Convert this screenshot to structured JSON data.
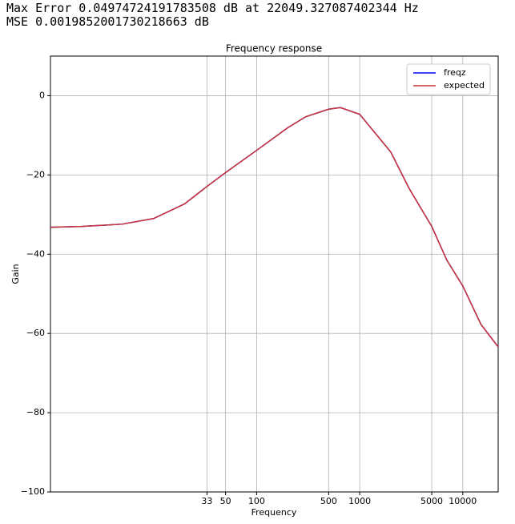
{
  "header": {
    "lines": [
      "Max Error 0.04974724191783508 dB at 22049.327087402344 Hz",
      "MSE 0.0019852001730218663 dB"
    ]
  },
  "chart_data": {
    "type": "line",
    "title": "Frequency response",
    "x_label": "Frequency",
    "y_label": "Gain",
    "x_scale": "log",
    "grid": true,
    "legend": "upper right",
    "x": [
      1,
      2,
      5,
      10,
      20,
      33,
      50,
      100,
      200,
      300,
      500,
      650,
      1000,
      2000,
      3000,
      5000,
      7000,
      10000,
      15000,
      22050
    ],
    "series": [
      {
        "name": "freqz",
        "color": "#0000ff",
        "values": [
          -33.2,
          -33.0,
          -32.4,
          -31.0,
          -27.3,
          -22.9,
          -19.4,
          -13.8,
          -8.1,
          -5.3,
          -3.4,
          -3.0,
          -4.7,
          -14.2,
          -23.3,
          -33.0,
          -41.5,
          -48.0,
          -57.7,
          -63.4
        ]
      },
      {
        "name": "expected",
        "color": "#cc3333",
        "values": [
          -33.2,
          -33.0,
          -32.4,
          -31.0,
          -27.3,
          -22.9,
          -19.4,
          -13.8,
          -8.1,
          -5.3,
          -3.4,
          -3.0,
          -4.7,
          -14.2,
          -23.3,
          -33.0,
          -41.5,
          -48.0,
          -57.7,
          -63.4
        ]
      }
    ],
    "xlim": [
      1,
      22050
    ],
    "xticks": [
      33,
      50,
      100,
      500,
      1000,
      5000,
      10000
    ],
    "ylim": [
      -100,
      10
    ],
    "yticks": [
      {
        "value": -100,
        "label": "−100"
      },
      {
        "value": -80,
        "label": "−80"
      },
      {
        "value": -60,
        "label": "−60"
      },
      {
        "value": -40,
        "label": "−40"
      },
      {
        "value": -20,
        "label": "−20"
      },
      0
    ]
  }
}
